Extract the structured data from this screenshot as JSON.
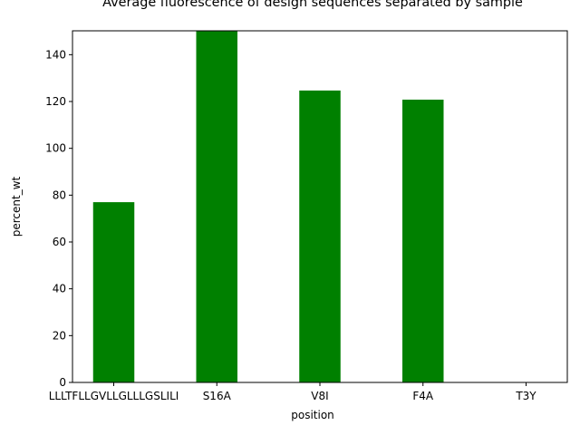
{
  "chart_data": {
    "type": "bar",
    "title": "Average fluorescence of design sequences separated by sample",
    "xlabel": "position",
    "ylabel": "percent_wt",
    "categories": [
      "LLLTFLLGVLLGLLLGSLILI",
      "S16A",
      "V8I",
      "F4A",
      "T3Y"
    ],
    "values": [
      77,
      150.2,
      124.7,
      120.8,
      0
    ],
    "ylim": [
      0,
      150.2
    ],
    "yticks": [
      0,
      20,
      40,
      60,
      80,
      100,
      120,
      140
    ],
    "bar_color": "#008000",
    "grid": false,
    "legend": "none"
  }
}
